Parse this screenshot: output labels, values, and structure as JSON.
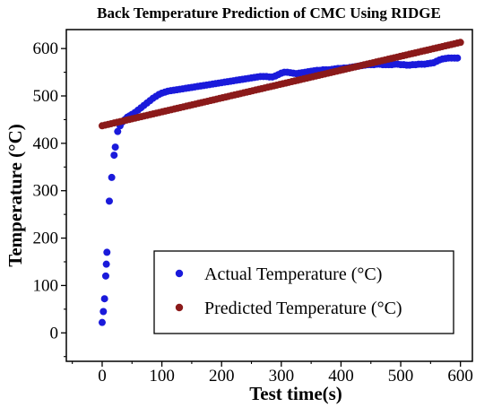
{
  "chart_data": {
    "type": "scatter",
    "title": "Back Temperature Prediction of CMC Using RIDGE",
    "xlabel": "Test time(s)",
    "ylabel": "Temperature (°C)",
    "xlim": [
      -60,
      620
    ],
    "ylim": [
      -60,
      640
    ],
    "xticks": [
      0,
      100,
      200,
      300,
      400,
      500,
      600
    ],
    "yticks": [
      0,
      100,
      200,
      300,
      400,
      500,
      600
    ],
    "grid": false,
    "legend_position": "bottom-right",
    "series": [
      {
        "name": "Actual Temperature (°C)",
        "color": "#1a1adb",
        "points": [
          [
            0,
            22
          ],
          [
            2,
            45
          ],
          [
            4,
            72
          ],
          [
            6,
            120
          ],
          [
            7,
            145
          ],
          [
            8,
            170
          ],
          [
            12,
            278
          ],
          [
            16,
            328
          ],
          [
            20,
            375
          ],
          [
            22,
            392
          ],
          [
            26,
            425
          ],
          [
            30,
            437
          ],
          [
            34,
            445
          ],
          [
            38,
            450
          ],
          [
            42,
            455
          ],
          [
            46,
            458
          ],
          [
            50,
            461
          ],
          [
            55,
            465
          ],
          [
            60,
            470
          ],
          [
            65,
            475
          ],
          [
            70,
            480
          ],
          [
            75,
            485
          ],
          [
            80,
            490
          ],
          [
            85,
            495
          ],
          [
            90,
            499
          ],
          [
            95,
            503
          ],
          [
            100,
            506
          ],
          [
            105,
            508
          ],
          [
            110,
            510
          ],
          [
            115,
            511
          ],
          [
            120,
            512
          ],
          [
            125,
            513
          ],
          [
            130,
            514
          ],
          [
            135,
            515
          ],
          [
            140,
            516
          ],
          [
            145,
            517
          ],
          [
            150,
            518
          ],
          [
            155,
            519
          ],
          [
            160,
            520
          ],
          [
            165,
            521
          ],
          [
            170,
            522
          ],
          [
            175,
            523
          ],
          [
            180,
            524
          ],
          [
            185,
            525
          ],
          [
            190,
            526
          ],
          [
            195,
            527
          ],
          [
            200,
            528
          ],
          [
            205,
            529
          ],
          [
            210,
            530
          ],
          [
            215,
            531
          ],
          [
            220,
            532
          ],
          [
            225,
            533
          ],
          [
            230,
            534
          ],
          [
            235,
            535
          ],
          [
            240,
            536
          ],
          [
            245,
            537
          ],
          [
            250,
            538
          ],
          [
            255,
            539
          ],
          [
            260,
            540
          ],
          [
            265,
            541
          ],
          [
            270,
            541
          ],
          [
            275,
            541
          ],
          [
            280,
            540
          ],
          [
            285,
            540
          ],
          [
            290,
            542
          ],
          [
            295,
            545
          ],
          [
            300,
            548
          ],
          [
            305,
            550
          ],
          [
            310,
            550
          ],
          [
            315,
            549
          ],
          [
            320,
            548
          ],
          [
            325,
            547
          ],
          [
            330,
            548
          ],
          [
            335,
            549
          ],
          [
            340,
            550
          ],
          [
            345,
            551
          ],
          [
            350,
            552
          ],
          [
            355,
            553
          ],
          [
            360,
            554
          ],
          [
            365,
            554
          ],
          [
            370,
            555
          ],
          [
            375,
            555
          ],
          [
            380,
            555
          ],
          [
            385,
            556
          ],
          [
            390,
            557
          ],
          [
            395,
            558
          ],
          [
            400,
            558
          ],
          [
            405,
            559
          ],
          [
            410,
            559
          ],
          [
            415,
            560
          ],
          [
            420,
            561
          ],
          [
            425,
            562
          ],
          [
            430,
            563
          ],
          [
            435,
            564
          ],
          [
            440,
            565
          ],
          [
            445,
            566
          ],
          [
            450,
            566
          ],
          [
            455,
            566
          ],
          [
            460,
            567
          ],
          [
            465,
            567
          ],
          [
            470,
            566
          ],
          [
            475,
            566
          ],
          [
            480,
            566
          ],
          [
            485,
            566
          ],
          [
            490,
            567
          ],
          [
            495,
            567
          ],
          [
            500,
            566
          ],
          [
            505,
            566
          ],
          [
            510,
            565
          ],
          [
            515,
            565
          ],
          [
            520,
            566
          ],
          [
            525,
            566
          ],
          [
            530,
            567
          ],
          [
            535,
            567
          ],
          [
            540,
            567
          ],
          [
            545,
            568
          ],
          [
            550,
            569
          ],
          [
            555,
            570
          ],
          [
            560,
            573
          ],
          [
            565,
            576
          ],
          [
            570,
            578
          ],
          [
            575,
            579
          ],
          [
            580,
            580
          ],
          [
            585,
            580
          ],
          [
            590,
            580
          ],
          [
            595,
            580
          ]
        ]
      },
      {
        "name": "Predicted Temperature (°C)",
        "color": "#8b1a1a",
        "line": {
          "x_start": 0,
          "y_start": 437,
          "x_end": 600,
          "y_end": 613,
          "count": 120
        }
      }
    ]
  }
}
